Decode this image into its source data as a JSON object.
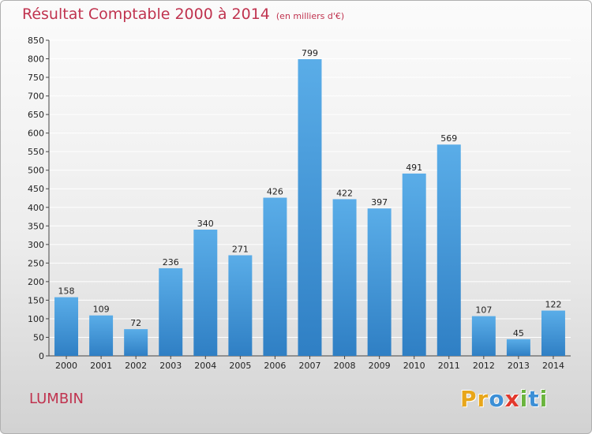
{
  "title": "Résultat Comptable 2000 à 2014",
  "subtitle": "(en milliers d'€)",
  "city": "LUMBIN",
  "logo": {
    "letters": [
      "P",
      "r",
      "o",
      "x",
      "i",
      "t",
      "i"
    ],
    "colors": [
      "#e8a61a",
      "#e8a61a",
      "#3c8fd6",
      "#e2382c",
      "#6ab43e",
      "#3c8fd6",
      "#6ab43e"
    ]
  },
  "colors": {
    "bar_top": "#5aade8",
    "bar_bottom": "#2f7fc4",
    "grid": "#ffffff",
    "title": "#c0334f"
  },
  "chart_data": {
    "type": "bar",
    "title": "Résultat Comptable 2000 à 2014",
    "xlabel": "",
    "ylabel": "",
    "ylim": [
      0,
      850
    ],
    "yticks": [
      0,
      50,
      100,
      150,
      200,
      250,
      300,
      350,
      400,
      450,
      500,
      550,
      600,
      650,
      700,
      750,
      800,
      850
    ],
    "grid": true,
    "categories": [
      "2000",
      "2001",
      "2002",
      "2003",
      "2004",
      "2005",
      "2006",
      "2007",
      "2008",
      "2009",
      "2010",
      "2011",
      "2012",
      "2013",
      "2014"
    ],
    "values": [
      158,
      109,
      72,
      236,
      340,
      271,
      426,
      799,
      422,
      397,
      491,
      569,
      107,
      45,
      122
    ]
  }
}
